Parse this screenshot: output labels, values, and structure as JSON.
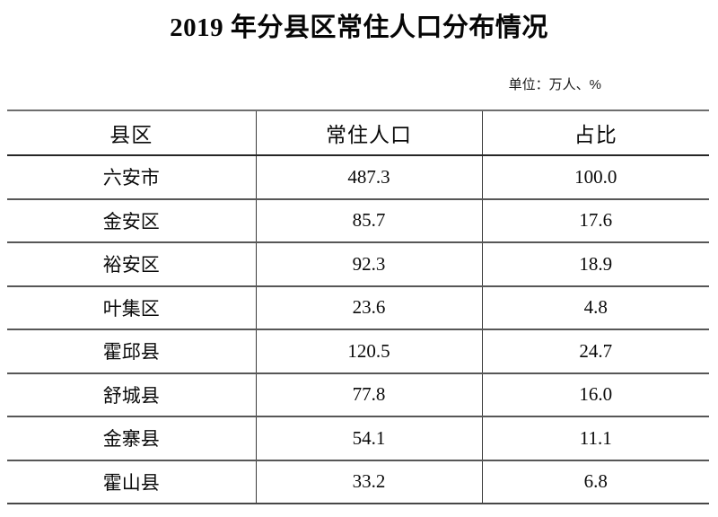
{
  "title": "2019 年分县区常住人口分布情况",
  "unit_note": "单位：万人、%",
  "table": {
    "columns": [
      "县区",
      "常住人口",
      "占比"
    ],
    "rows": [
      [
        "六安市",
        "487.3",
        "100.0"
      ],
      [
        "金安区",
        "85.7",
        "17.6"
      ],
      [
        "裕安区",
        "92.3",
        "18.9"
      ],
      [
        "叶集区",
        "23.6",
        "4.8"
      ],
      [
        "霍邱县",
        "120.5",
        "24.7"
      ],
      [
        "舒城县",
        "77.8",
        "16.0"
      ],
      [
        "金寨县",
        "54.1",
        "11.1"
      ],
      [
        "霍山县",
        "33.2",
        "6.8"
      ]
    ]
  },
  "colors": {
    "text": "#000000",
    "background": "#ffffff",
    "border_strong": "#262626",
    "border_soft": "#6e6e6e"
  }
}
